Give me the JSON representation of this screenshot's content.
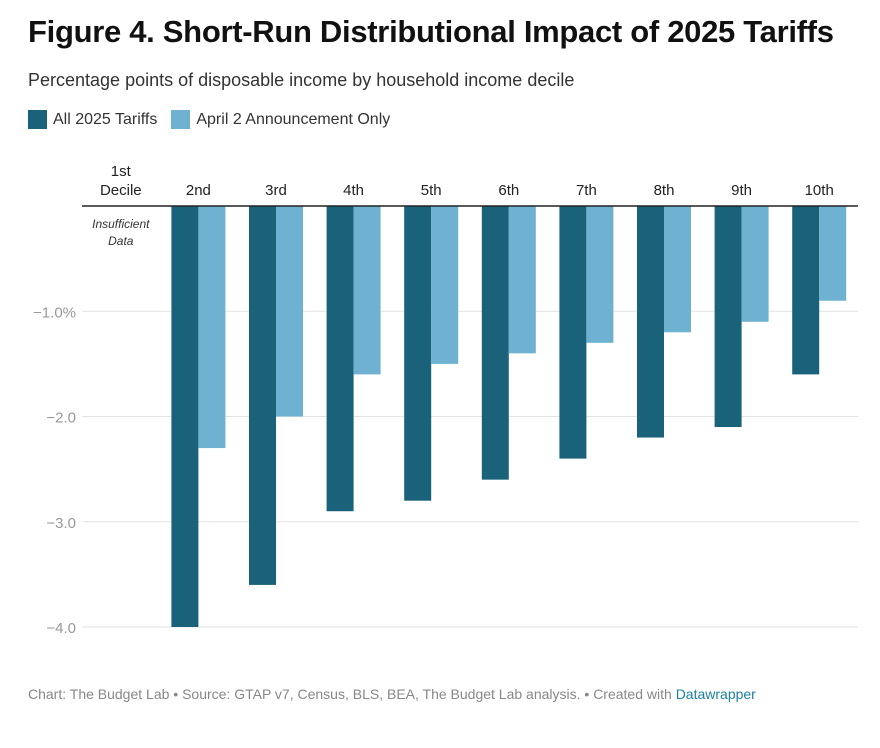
{
  "title": "Figure 4. Short-Run Distributional Impact of 2025 Tariffs",
  "subtitle": "Percentage points of disposable income by household income decile",
  "colors": {
    "series1": "#19627a",
    "series2": "#6fb1d0",
    "grid": "#e3e3e3",
    "axis": "#222222",
    "tick": "#999999"
  },
  "chart_data": {
    "type": "bar",
    "categories": [
      "1st Decile",
      "2nd",
      "3rd",
      "4th",
      "5th",
      "6th",
      "7th",
      "8th",
      "9th",
      "10th"
    ],
    "series": [
      {
        "name": "All 2025 Tariffs",
        "values": [
          null,
          -4.0,
          -3.6,
          -2.9,
          -2.8,
          -2.6,
          -2.4,
          -2.2,
          -2.1,
          -1.6
        ]
      },
      {
        "name": "April 2 Announcement Only",
        "values": [
          null,
          -2.3,
          -2.0,
          -1.6,
          -1.5,
          -1.4,
          -1.3,
          -1.2,
          -1.1,
          -0.9
        ]
      }
    ],
    "yticks": [
      -1.0,
      -2.0,
      -3.0,
      -4.0
    ],
    "ytick_labels": [
      "−1.0%",
      "−2.0",
      "−3.0",
      "−4.0"
    ],
    "ylim": [
      -4.0,
      0
    ],
    "annotations": [
      {
        "category": "1st Decile",
        "text": "Insufficient Data"
      }
    ],
    "xlabel": "",
    "ylabel": ""
  },
  "footer": {
    "prefix": "Chart: The Budget Lab • Source: GTAP v7, Census, BLS, BEA, The Budget Lab analysis. • Created with ",
    "link": "Datawrapper"
  }
}
